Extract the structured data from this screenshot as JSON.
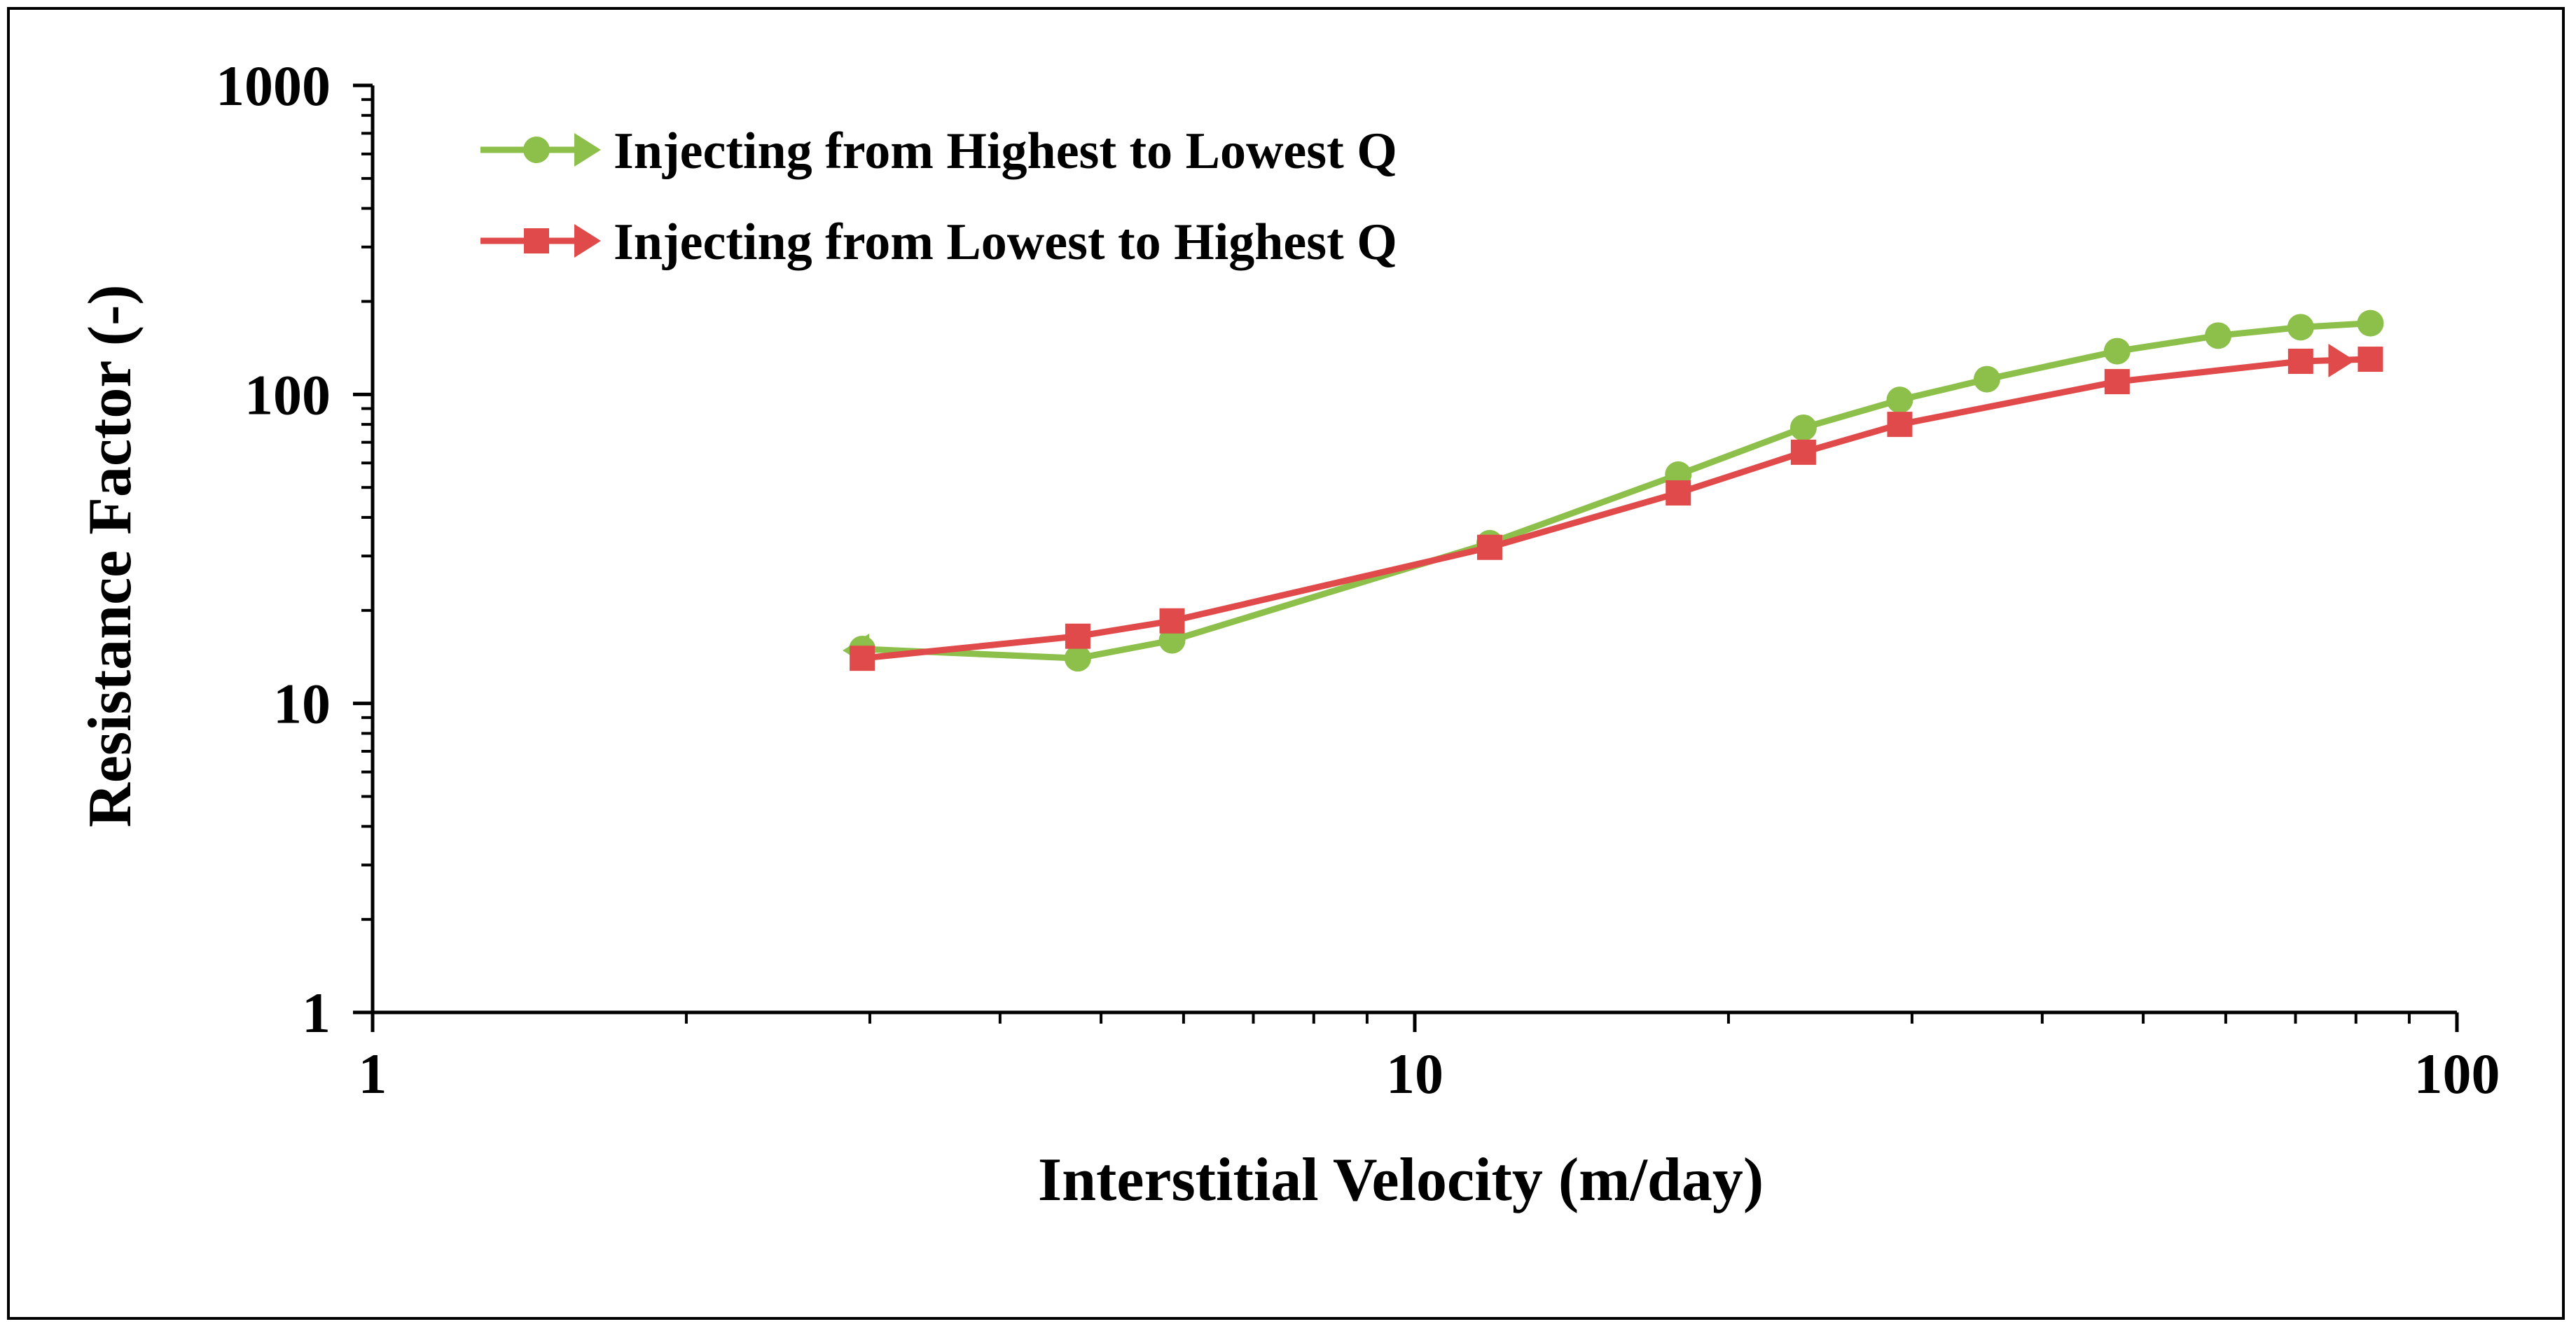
{
  "chart_data": {
    "type": "line",
    "xscale": "log",
    "yscale": "log",
    "xlabel": "Interstitial Velocity (m/day)",
    "ylabel": "Resistance Factor (-)",
    "xlim": [
      1,
      100
    ],
    "ylim": [
      1,
      1000
    ],
    "xticks": [
      1,
      10,
      100
    ],
    "yticks": [
      1,
      10,
      100,
      1000
    ],
    "xtick_labels": [
      "1",
      "10",
      "100"
    ],
    "ytick_labels": [
      "1",
      "10",
      "100",
      "1000"
    ],
    "legend_position": "top-left",
    "grid": false,
    "series": [
      {
        "name": "Injecting from Highest to Lowest Q",
        "color": "#8DC04B",
        "marker": "circle",
        "direction": "backward",
        "x": [
          2.95,
          4.75,
          5.85,
          11.8,
          17.9,
          23.6,
          29.2,
          35.4,
          47.2,
          59.0,
          70.8,
          82.6
        ],
        "y": [
          15,
          14,
          16,
          33,
          55,
          78,
          96,
          112,
          138,
          155,
          165,
          170
        ]
      },
      {
        "name": "Injecting from Lowest to Highest Q",
        "color": "#E04A4A",
        "marker": "square",
        "direction": "forward",
        "x": [
          2.95,
          4.75,
          5.85,
          11.8,
          17.9,
          23.6,
          29.2,
          47.2,
          70.8,
          82.6
        ],
        "y": [
          14,
          16.5,
          18.5,
          32,
          48,
          65,
          80,
          110,
          128,
          130
        ]
      }
    ]
  }
}
